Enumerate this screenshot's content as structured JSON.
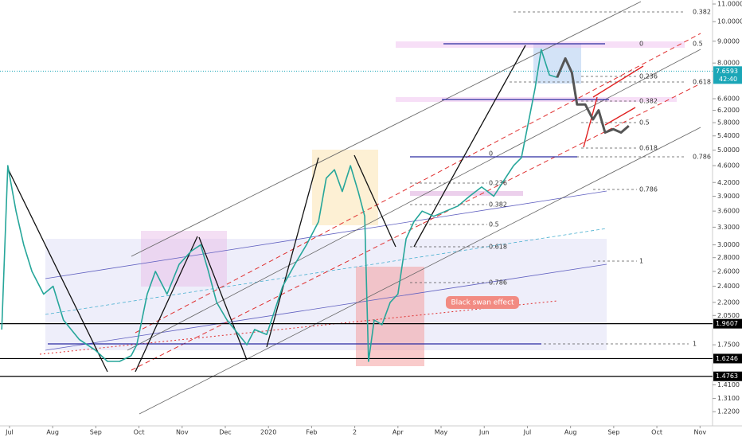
{
  "chart_data": {
    "type": "line",
    "log_scale": true,
    "xlim": [
      -0.22,
      16.29
    ],
    "xticks": [
      {
        "value": 0,
        "label": "Jul"
      },
      {
        "value": 1,
        "label": "Aug"
      },
      {
        "value": 2,
        "label": "Sep"
      },
      {
        "value": 3,
        "label": "Oct"
      },
      {
        "value": 4,
        "label": "Nov"
      },
      {
        "value": 5,
        "label": "Dec"
      },
      {
        "value": 6,
        "label": "2020"
      },
      {
        "value": 7,
        "label": "Feb"
      },
      {
        "value": 8,
        "label": "2"
      },
      {
        "value": 9,
        "label": "Apr"
      },
      {
        "value": 10,
        "label": "May"
      },
      {
        "value": 11,
        "label": "Jun"
      },
      {
        "value": 12,
        "label": "Jul"
      },
      {
        "value": 13,
        "label": "Aug"
      },
      {
        "value": 14,
        "label": "Sep"
      },
      {
        "value": 15,
        "label": "Oct"
      },
      {
        "value": 16,
        "label": "Nov"
      }
    ],
    "ylim": [
      1.13,
      11.24
    ],
    "yticks": [
      {
        "value": 11,
        "label": "11.0000"
      },
      {
        "value": 10,
        "label": "10.0000"
      },
      {
        "value": 9,
        "label": "9.0000"
      },
      {
        "value": 8,
        "label": "8.0000"
      },
      {
        "value": 6.6,
        "label": "6.6000"
      },
      {
        "value": 6.2,
        "label": "6.2000"
      },
      {
        "value": 5.8,
        "label": "5.8000"
      },
      {
        "value": 5.4,
        "label": "5.4000"
      },
      {
        "value": 5,
        "label": "5.0000"
      },
      {
        "value": 4.6,
        "label": "4.6000"
      },
      {
        "value": 4.2,
        "label": "4.2000"
      },
      {
        "value": 3.9,
        "label": "3.9000"
      },
      {
        "value": 3.6,
        "label": "3.6000"
      },
      {
        "value": 3.3,
        "label": "3.3000"
      },
      {
        "value": 3,
        "label": "3.0000"
      },
      {
        "value": 2.8,
        "label": "2.8000"
      },
      {
        "value": 2.6,
        "label": "2.6000"
      },
      {
        "value": 2.4,
        "label": "2.4000"
      },
      {
        "value": 2.2,
        "label": "2.2000"
      },
      {
        "value": 2.05,
        "label": "2.0500"
      },
      {
        "value": 1.75,
        "label": "1.7500"
      },
      {
        "value": 1.41,
        "label": "1.4100"
      },
      {
        "value": 1.31,
        "label": "1.3100"
      },
      {
        "value": 1.22,
        "label": "1.2200"
      }
    ],
    "series": [
      {
        "color": "#26a69a",
        "x": [
          -0.18,
          -0.04,
          0.15,
          0.33,
          0.52,
          0.79,
          1.01,
          1.25,
          1.62,
          1.99,
          2.27,
          2.55,
          2.82,
          2.95,
          3.19,
          3.38,
          3.65,
          3.93,
          4.21,
          4.43,
          4.61,
          4.8,
          5.04,
          5.31,
          5.5,
          5.68,
          5.96,
          6.14,
          6.33,
          6.61,
          6.88,
          7.16,
          7.34,
          7.53,
          7.71,
          7.9,
          8.08,
          8.23,
          8.32,
          8.45,
          8.63,
          8.82,
          9.0,
          9.19,
          9.37,
          9.56,
          9.83,
          10.11,
          10.39,
          10.66,
          10.94,
          11.22,
          11.49,
          11.68,
          11.86,
          12.05,
          12.18,
          12.32,
          12.51,
          12.69
        ],
        "values": [
          1.9,
          4.6,
          3.6,
          3.0,
          2.6,
          2.3,
          2.4,
          2.0,
          1.8,
          1.7,
          1.6,
          1.6,
          1.65,
          1.75,
          2.3,
          2.6,
          2.3,
          2.7,
          2.9,
          3.0,
          2.6,
          2.2,
          2.0,
          1.85,
          1.75,
          1.9,
          1.85,
          2.1,
          2.4,
          2.7,
          3.0,
          3.4,
          4.3,
          4.5,
          4.0,
          4.6,
          4.0,
          3.5,
          1.6,
          2.0,
          1.95,
          2.2,
          2.3,
          3.1,
          3.4,
          3.6,
          3.5,
          3.6,
          3.7,
          3.9,
          4.1,
          3.9,
          4.3,
          4.6,
          4.8,
          6.0,
          7.0,
          8.6,
          7.5,
          7.4
        ]
      },
      {
        "color": "#555555",
        "x": [
          12.69,
          12.88,
          13.03,
          13.15,
          13.34,
          13.52,
          13.65,
          13.8,
          13.99,
          14.17,
          14.35
        ],
        "values": [
          7.4,
          8.2,
          7.6,
          6.4,
          6.4,
          5.9,
          6.2,
          5.5,
          5.6,
          5.5,
          5.7
        ]
      }
    ],
    "levels": [
      1.9607,
      1.6246,
      1.4763
    ],
    "last_price": 7.6593,
    "countdown": "42:40",
    "annotations": [
      "0.382",
      "0",
      "0.5",
      "0.236",
      "0.618",
      "0.382",
      "0.5",
      "0.618",
      "0.786",
      "0.786",
      "1",
      "0",
      "0.236",
      "0.382",
      "0.5",
      "0.618",
      "0.786",
      "1",
      "Black swan effect"
    ]
  }
}
